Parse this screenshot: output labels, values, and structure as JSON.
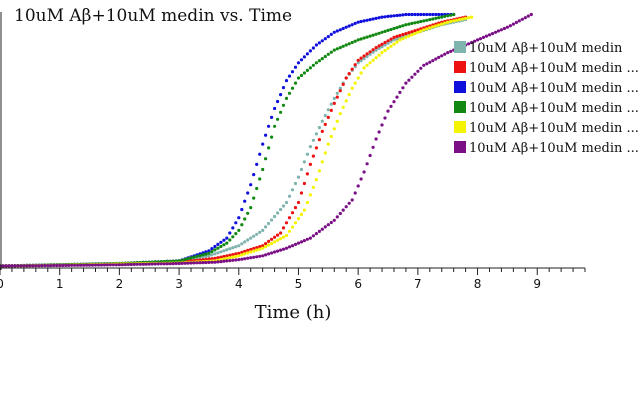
{
  "chart_data": {
    "type": "scatter",
    "title": "10uM Aβ+10uM medin vs. Time",
    "xlabel": "Time (h)",
    "ylabel": "",
    "xlim": [
      0,
      9.8
    ],
    "ylim": [
      0,
      1
    ],
    "x_ticks": [
      "0",
      "1",
      "2",
      "3",
      "4",
      "5",
      "6",
      "7",
      "8",
      "9"
    ],
    "legend_position": "right",
    "series": [
      {
        "name": "10uM Aβ+10uM medin",
        "color": "#7fb3ad",
        "x": [
          0,
          1,
          2,
          3,
          3.5,
          4,
          4.4,
          4.8,
          5.0,
          5.2,
          5.4,
          5.6,
          5.8,
          6.0,
          6.3,
          6.6,
          7.0,
          7.4,
          7.8
        ],
        "y": [
          0.0,
          0.005,
          0.01,
          0.02,
          0.04,
          0.08,
          0.14,
          0.25,
          0.35,
          0.47,
          0.57,
          0.66,
          0.74,
          0.8,
          0.85,
          0.89,
          0.92,
          0.95,
          0.97
        ]
      },
      {
        "name": "10uM Aβ+10uM medin ...",
        "color": "#ee1111",
        "x": [
          0,
          1,
          2,
          3,
          3.6,
          4.0,
          4.4,
          4.7,
          5.0,
          5.2,
          5.4,
          5.6,
          5.8,
          6.0,
          6.3,
          6.6,
          7.0,
          7.4,
          7.8
        ],
        "y": [
          0.0,
          0.003,
          0.008,
          0.015,
          0.03,
          0.05,
          0.08,
          0.13,
          0.25,
          0.4,
          0.53,
          0.64,
          0.74,
          0.81,
          0.86,
          0.9,
          0.93,
          0.96,
          0.98
        ]
      },
      {
        "name": "10uM Aβ+10uM medin ...",
        "color": "#1010dd",
        "x": [
          0,
          1,
          2,
          3,
          3.5,
          3.8,
          4.0,
          4.2,
          4.4,
          4.6,
          4.8,
          5.0,
          5.3,
          5.6,
          6.0,
          6.4,
          6.8,
          7.2,
          7.6
        ],
        "y": [
          0.0,
          0.005,
          0.01,
          0.02,
          0.06,
          0.11,
          0.19,
          0.32,
          0.48,
          0.62,
          0.73,
          0.8,
          0.87,
          0.92,
          0.96,
          0.98,
          0.99,
          0.99,
          0.99
        ]
      },
      {
        "name": "10uM Aβ+10uM medin ...",
        "color": "#118811",
        "x": [
          0,
          1,
          2,
          3,
          3.5,
          3.8,
          4.0,
          4.2,
          4.4,
          4.6,
          4.8,
          5.0,
          5.3,
          5.6,
          6.0,
          6.4,
          6.8,
          7.2,
          7.6
        ],
        "y": [
          0.0,
          0.005,
          0.01,
          0.02,
          0.05,
          0.09,
          0.14,
          0.23,
          0.38,
          0.55,
          0.66,
          0.74,
          0.8,
          0.85,
          0.89,
          0.92,
          0.95,
          0.97,
          0.99
        ]
      },
      {
        "name": "10uM Aβ+10uM medin ...",
        "color": "#f4f400",
        "x": [
          0,
          1,
          2,
          3,
          3.6,
          4.0,
          4.4,
          4.8,
          5.1,
          5.3,
          5.5,
          5.7,
          5.9,
          6.1,
          6.4,
          6.7,
          7.1,
          7.5,
          7.9
        ],
        "y": [
          0.0,
          0.003,
          0.008,
          0.012,
          0.02,
          0.04,
          0.07,
          0.12,
          0.22,
          0.34,
          0.48,
          0.6,
          0.7,
          0.78,
          0.84,
          0.89,
          0.93,
          0.96,
          0.98
        ]
      },
      {
        "name": "10uM Aβ+10uM medin ...",
        "color": "#7a0f86",
        "x": [
          0,
          1,
          2,
          3,
          3.6,
          4.0,
          4.4,
          4.8,
          5.2,
          5.6,
          5.9,
          6.1,
          6.3,
          6.5,
          6.8,
          7.1,
          7.5,
          8.0,
          8.5,
          8.9
        ],
        "y": [
          0.0,
          0.002,
          0.005,
          0.01,
          0.015,
          0.025,
          0.04,
          0.07,
          0.11,
          0.18,
          0.26,
          0.37,
          0.5,
          0.61,
          0.72,
          0.79,
          0.84,
          0.89,
          0.94,
          0.99
        ]
      }
    ]
  }
}
